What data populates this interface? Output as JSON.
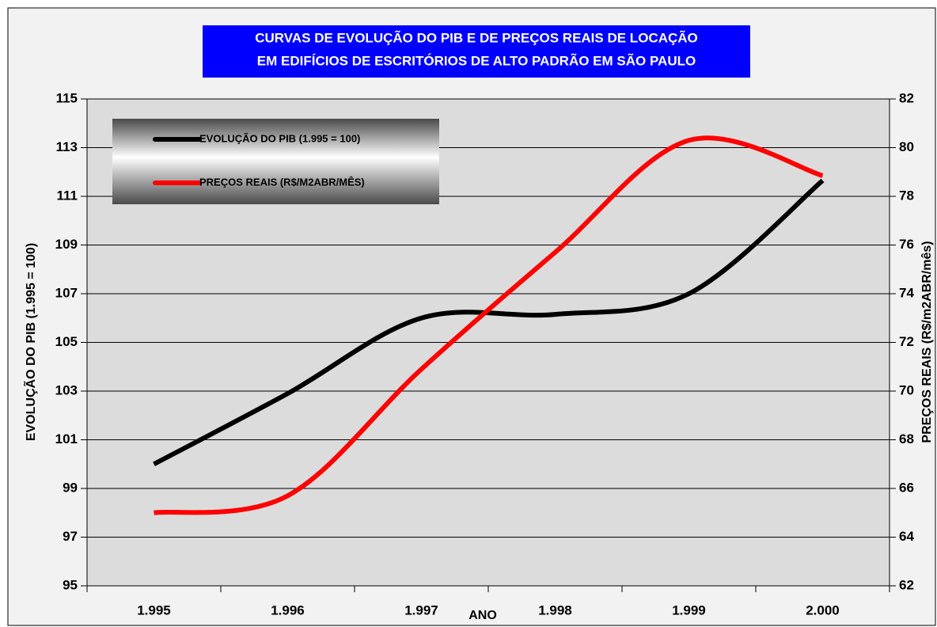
{
  "chart_data": {
    "type": "line",
    "title": [
      "CURVAS DE EVOLUÇÃO DO PIB E DE PREÇOS REAIS DE LOCAÇÃO",
      "EM EDIFÍCIOS DE ESCRITÓRIOS DE ALTO PADRÃO EM SÃO PAULO"
    ],
    "x_label": "ANO",
    "y_label": "EVOLUÇÃO DO PIB (1.995 = 100)",
    "y2_label": "PREÇOS REAIS (R$/m2ABR/mês)",
    "categories": [
      "1.995",
      "1.996",
      "1.997",
      "1.998",
      "1.999",
      "2.000"
    ],
    "series": [
      {
        "name": "EVOLUÇÃO DO PIB (1.995 = 100)",
        "color": "#000000",
        "values": [
          100.0,
          102.9,
          106.0,
          106.15,
          107.0,
          111.65
        ]
      },
      {
        "name": "PREÇOS REAIS (R$/M2ABR/MÊS)",
        "color": "#ff0000",
        "axis": "y2",
        "values": [
          65.0,
          65.7,
          70.9,
          75.7,
          80.3,
          78.85
        ]
      }
    ],
    "ylim": [
      95,
      115
    ],
    "yticks": [
      95,
      97,
      99,
      101,
      103,
      105,
      107,
      109,
      111,
      113,
      115
    ],
    "y2lim": [
      62,
      82
    ],
    "y2ticks": [
      62,
      64,
      66,
      68,
      70,
      72,
      74,
      76,
      78,
      80,
      82
    ],
    "grid": true,
    "legend": "top-left"
  }
}
